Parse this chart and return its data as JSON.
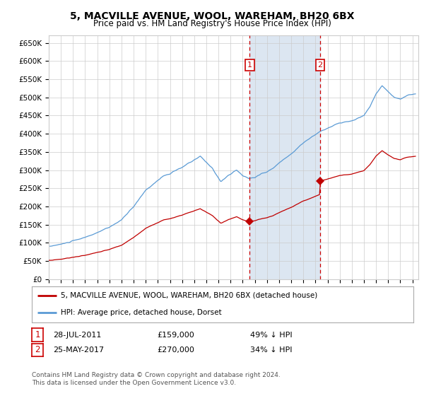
{
  "title": "5, MACVILLE AVENUE, WOOL, WAREHAM, BH20 6BX",
  "subtitle": "Price paid vs. HM Land Registry's House Price Index (HPI)",
  "title_fontsize": 10,
  "subtitle_fontsize": 8.5,
  "ylim": [
    0,
    670000
  ],
  "xlim_start": 1995.0,
  "xlim_end": 2025.5,
  "yticks": [
    0,
    50000,
    100000,
    150000,
    200000,
    250000,
    300000,
    350000,
    400000,
    450000,
    500000,
    550000,
    600000,
    650000
  ],
  "ytick_labels": [
    "£0",
    "£50K",
    "£100K",
    "£150K",
    "£200K",
    "£250K",
    "£300K",
    "£350K",
    "£400K",
    "£450K",
    "£500K",
    "£550K",
    "£600K",
    "£650K"
  ],
  "hpi_color": "#5b9bd5",
  "price_color": "#c00000",
  "vline_color": "#cc0000",
  "highlight_color": "#dce6f1",
  "sale1_x": 2011.57,
  "sale1_y": 159000,
  "sale2_x": 2017.39,
  "sale2_y": 270000,
  "legend_line1": "5, MACVILLE AVENUE, WOOL, WAREHAM, BH20 6BX (detached house)",
  "legend_line2": "HPI: Average price, detached house, Dorset",
  "table_row1": [
    "1",
    "28-JUL-2011",
    "£159,000",
    "49% ↓ HPI"
  ],
  "table_row2": [
    "2",
    "25-MAY-2017",
    "£270,000",
    "34% ↓ HPI"
  ],
  "footnote": "Contains HM Land Registry data © Crown copyright and database right 2024.\nThis data is licensed under the Open Government Licence v3.0.",
  "bg_color": "#ffffff",
  "grid_color": "#cccccc",
  "font_color": "#000000"
}
